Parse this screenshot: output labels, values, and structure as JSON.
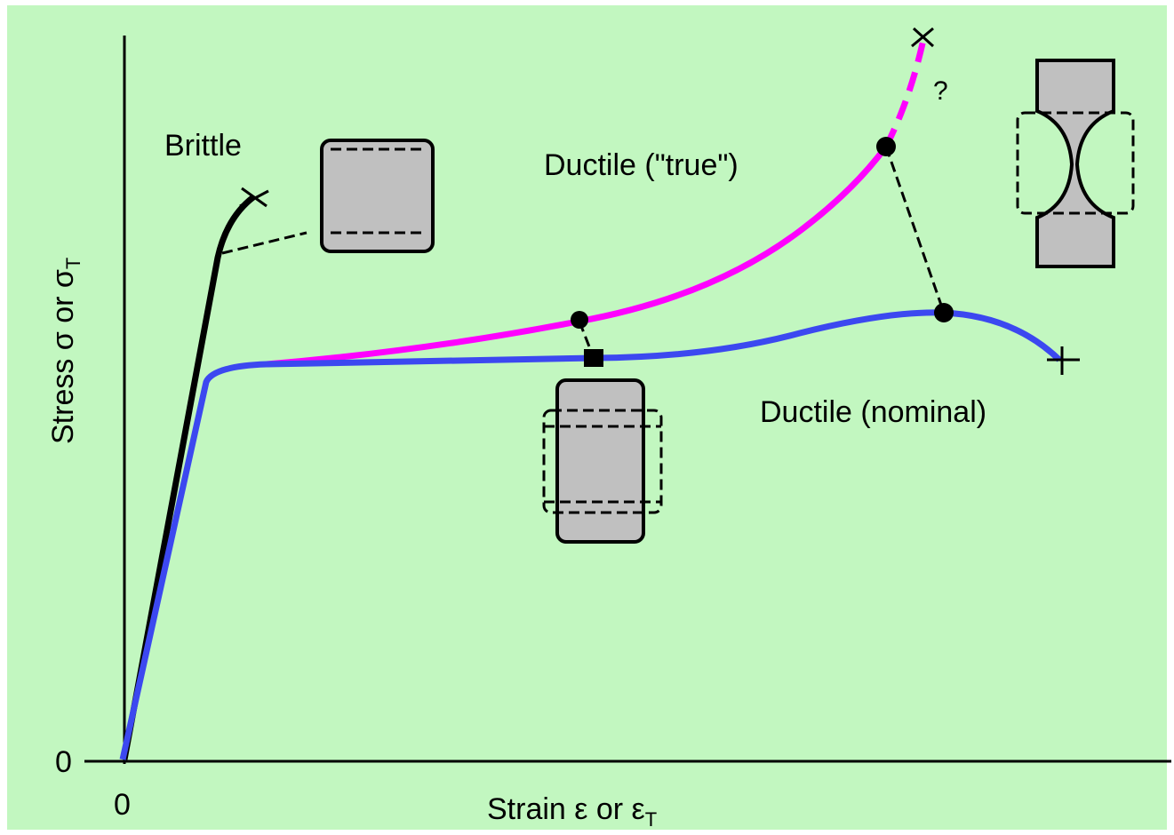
{
  "diagram": {
    "curves": {
      "brittle": "Brittle",
      "ductile_true": "Ductile (\"true\")",
      "ductile_nominal": "Ductile (nominal)",
      "uncertain": "?"
    },
    "y_axis": {
      "text": "Stress σ or σ",
      "subscript": "T",
      "origin": "0"
    },
    "x_axis": {
      "text": "Strain ε or ε",
      "subscript": "T",
      "origin": "0"
    }
  }
}
